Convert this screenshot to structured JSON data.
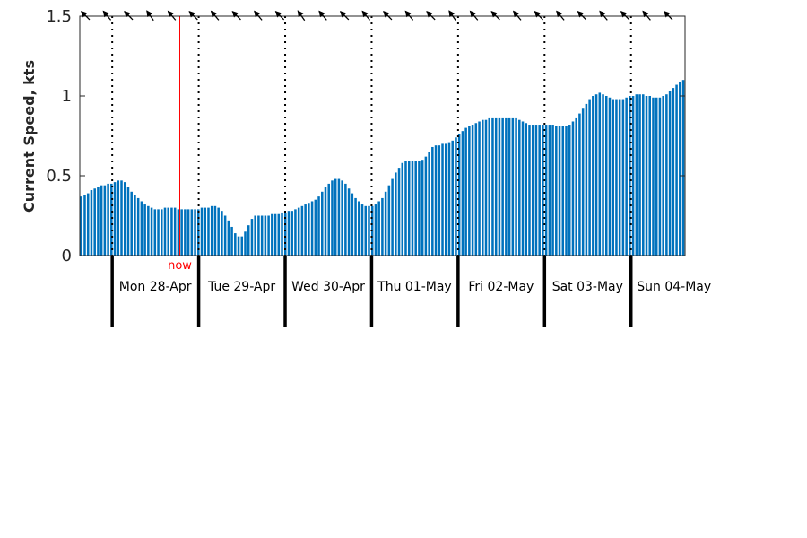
{
  "chart_data": {
    "type": "bar",
    "title": "",
    "xlabel": "",
    "ylabel": "Current Speed, kts",
    "ylim": [
      0,
      1.5
    ],
    "yticks": [
      0,
      0.5,
      1,
      1.5
    ],
    "ytick_labels": [
      "0",
      "0.5",
      "1",
      "1.5"
    ],
    "grid": false,
    "bar_color": "#0072BD",
    "now_color": "#FF0000",
    "now_label": "now",
    "now_hour": 18.75,
    "day_labels": [
      "Mon 28-Apr",
      "Tue 29-Apr",
      "Wed 30-Apr",
      "Thu 01-May",
      "Fri 02-May",
      "Sat 03-May",
      "Sun 04-May"
    ],
    "day_start_hours": [
      0,
      24,
      48,
      72,
      96,
      120,
      144
    ],
    "x_hour_range": [
      -9,
      159
    ],
    "bar_interval_hours": 1,
    "values": [
      0.37,
      0.38,
      0.39,
      0.41,
      0.42,
      0.43,
      0.44,
      0.44,
      0.45,
      0.45,
      0.46,
      0.47,
      0.47,
      0.46,
      0.43,
      0.4,
      0.38,
      0.36,
      0.34,
      0.32,
      0.31,
      0.3,
      0.29,
      0.29,
      0.29,
      0.3,
      0.3,
      0.3,
      0.3,
      0.29,
      0.29,
      0.29,
      0.29,
      0.29,
      0.29,
      0.29,
      0.3,
      0.3,
      0.3,
      0.31,
      0.31,
      0.3,
      0.28,
      0.25,
      0.22,
      0.18,
      0.14,
      0.12,
      0.12,
      0.15,
      0.19,
      0.23,
      0.25,
      0.25,
      0.25,
      0.25,
      0.25,
      0.26,
      0.26,
      0.26,
      0.27,
      0.27,
      0.28,
      0.28,
      0.29,
      0.3,
      0.31,
      0.32,
      0.33,
      0.34,
      0.35,
      0.37,
      0.4,
      0.43,
      0.45,
      0.47,
      0.48,
      0.48,
      0.47,
      0.45,
      0.42,
      0.39,
      0.36,
      0.34,
      0.32,
      0.31,
      0.31,
      0.31,
      0.32,
      0.34,
      0.36,
      0.4,
      0.44,
      0.48,
      0.52,
      0.55,
      0.58,
      0.59,
      0.59,
      0.59,
      0.59,
      0.59,
      0.6,
      0.62,
      0.65,
      0.68,
      0.69,
      0.69,
      0.7,
      0.7,
      0.71,
      0.72,
      0.74,
      0.76,
      0.78,
      0.8,
      0.81,
      0.82,
      0.83,
      0.84,
      0.85,
      0.85,
      0.86,
      0.86,
      0.86,
      0.86,
      0.86,
      0.86,
      0.86,
      0.86,
      0.86,
      0.85,
      0.84,
      0.83,
      0.82,
      0.82,
      0.82,
      0.82,
      0.82,
      0.82,
      0.82,
      0.82,
      0.81,
      0.81,
      0.81,
      0.81,
      0.82,
      0.84,
      0.86,
      0.89,
      0.92,
      0.95,
      0.98,
      1.0,
      1.01,
      1.02,
      1.01,
      1.0,
      0.99,
      0.98,
      0.98,
      0.98,
      0.98,
      0.99,
      1.0,
      1.0,
      1.01,
      1.01,
      1.01,
      1.0,
      1.0,
      0.99,
      0.99,
      0.99,
      1.0,
      1.01,
      1.03,
      1.05,
      1.07,
      1.09,
      1.1
    ],
    "direction_markers_count": 28,
    "direction_angles_deg": [
      135,
      140,
      135,
      145,
      140,
      135,
      140,
      135,
      140,
      135,
      145,
      140,
      135,
      140,
      135,
      140,
      135,
      145,
      140,
      135,
      140,
      135,
      140,
      135,
      140,
      135,
      140,
      135
    ]
  }
}
